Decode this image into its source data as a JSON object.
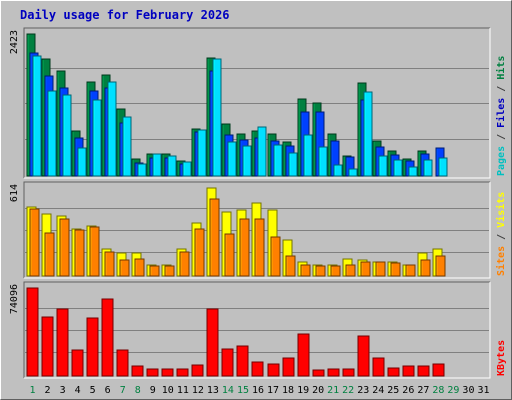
{
  "chart_data": {
    "type": "bar",
    "title": "Daily usage for February 2026",
    "days": [
      "1",
      "2",
      "3",
      "4",
      "5",
      "6",
      "7",
      "8",
      "9",
      "10",
      "11",
      "12",
      "13",
      "14",
      "15",
      "16",
      "17",
      "18",
      "19",
      "20",
      "21",
      "22",
      "23",
      "24",
      "25",
      "26",
      "27",
      "28",
      "29",
      "30",
      "31"
    ],
    "weekend_days": [
      1,
      7,
      8,
      14,
      15,
      21,
      22,
      28,
      29
    ],
    "panels": [
      {
        "id": "hits-files-pages",
        "max_label": "2423",
        "ymax": 2423,
        "legend": [
          {
            "text": "Pages",
            "color": "#00c0c0"
          },
          {
            "text": " / ",
            "color": "#404040"
          },
          {
            "text": "Files",
            "color": "#0000c0"
          },
          {
            "text": " / ",
            "color": "#404040"
          },
          {
            "text": "Hits",
            "color": "#008040"
          }
        ],
        "series": [
          {
            "name": "Hits",
            "color": "#008040",
            "values": [
              2423,
              1993,
              1786,
              771,
              1603,
              1715,
              1140,
              288,
              371,
              375,
              257,
              804,
              2007,
              885,
              715,
              761,
              716,
              583,
              1317,
              1245,
              720,
              348,
              1584,
              600,
              427,
              288,
              425,
              0,
              0,
              0,
              0
            ]
          },
          {
            "name": "Files",
            "color": "#0040ff",
            "values": [
              2100,
              1700,
              1500,
              650,
              1450,
              1500,
              900,
              220,
              310,
              300,
              200,
              750,
              1800,
              700,
              620,
              650,
              600,
              520,
              1100,
              1100,
              600,
              320,
              1300,
              500,
              350,
              250,
              380,
              480,
              0,
              0,
              0
            ]
          },
          {
            "name": "Pages",
            "color": "#00e0ff",
            "values": [
              2050,
              1450,
              1380,
              480,
              1300,
              1600,
              1000,
              200,
              380,
              340,
              240,
              780,
              1990,
              580,
              520,
              840,
              530,
              400,
              700,
              500,
              180,
              120,
              1430,
              340,
              270,
              160,
              280,
              300,
              0,
              0,
              0
            ]
          }
        ]
      },
      {
        "id": "visits-sites",
        "max_label": "614",
        "ymax": 614,
        "legend": [
          {
            "text": "Sites",
            "color": "#ff8000"
          },
          {
            "text": " / ",
            "color": "#404040"
          },
          {
            "text": "Visits",
            "color": "#ffff00"
          }
        ],
        "series": [
          {
            "name": "Visits",
            "color": "#ffff00",
            "values": [
              480,
              430,
              420,
              330,
              350,
              190,
              160,
              160,
              80,
              80,
              190,
              370,
              614,
              450,
              460,
              510,
              460,
              250,
              95,
              80,
              80,
              120,
              110,
              100,
              100,
              80,
              160,
              190,
              0,
              0,
              0
            ]
          },
          {
            "name": "Sites",
            "color": "#ff8000",
            "values": [
              470,
              300,
              400,
              320,
              340,
              170,
              110,
              120,
              70,
              70,
              170,
              330,
              540,
              290,
              400,
              400,
              270,
              140,
              80,
              70,
              70,
              80,
              100,
              95,
              90,
              80,
              110,
              140,
              0,
              0,
              0
            ]
          }
        ]
      },
      {
        "id": "kbytes",
        "max_label": "74096",
        "ymax": 74096,
        "legend": [
          {
            "text": "KBytes",
            "color": "#ff0000"
          }
        ],
        "series": [
          {
            "name": "KBytes",
            "color": "#ff0000",
            "values": [
              74096,
              50000,
              56000,
              21500,
              49000,
              65000,
              21500,
              8500,
              6000,
              6000,
              6000,
              9000,
              56000,
              23000,
              25500,
              11500,
              10500,
              15000,
              35000,
              5000,
              6000,
              6000,
              34000,
              15000,
              7000,
              8000,
              8000,
              10500,
              0,
              0,
              0
            ]
          }
        ]
      }
    ]
  }
}
